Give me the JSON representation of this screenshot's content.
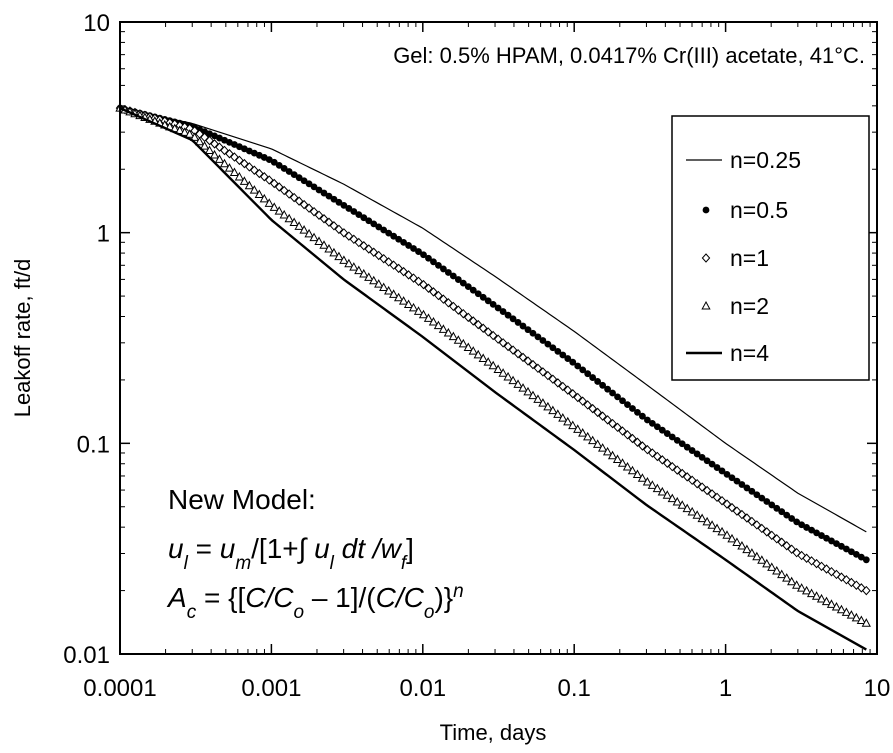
{
  "chart_data": {
    "type": "line",
    "title": "Gel: 0.5% HPAM, 0.0417% Cr(III) acetate, 41°C.",
    "xlabel": "Time, days",
    "ylabel": "Leakoff rate, ft/d",
    "x_scale": "log",
    "y_scale": "log",
    "xlim": [
      0.0001,
      10
    ],
    "ylim": [
      0.01,
      10
    ],
    "x_ticks": [
      "0.0001",
      "0.001",
      "0.01",
      "0.1",
      "1",
      "10"
    ],
    "y_ticks": [
      "0.01",
      "0.1",
      "1",
      "10"
    ],
    "grid": false,
    "legend_position": "right",
    "series": [
      {
        "name": "n=0.25",
        "style": "thin-line",
        "x": [
          0.0001,
          0.0003,
          0.001,
          0.003,
          0.01,
          0.03,
          0.1,
          0.3,
          1,
          3,
          8.5
        ],
        "y": [
          3.9,
          3.3,
          2.5,
          1.7,
          1.05,
          0.62,
          0.34,
          0.19,
          0.1,
          0.058,
          0.038
        ]
      },
      {
        "name": "n=0.5",
        "style": "filled-circles",
        "x": [
          0.0001,
          0.0003,
          0.001,
          0.003,
          0.01,
          0.03,
          0.1,
          0.3,
          1,
          3,
          8.5
        ],
        "y": [
          3.9,
          3.2,
          2.2,
          1.35,
          0.79,
          0.45,
          0.24,
          0.13,
          0.072,
          0.042,
          0.028
        ]
      },
      {
        "name": "n=1",
        "style": "open-diamonds",
        "x": [
          0.0001,
          0.0003,
          0.001,
          0.003,
          0.01,
          0.03,
          0.1,
          0.3,
          1,
          3,
          8.5
        ],
        "y": [
          3.9,
          3.1,
          1.75,
          1.0,
          0.57,
          0.32,
          0.17,
          0.094,
          0.052,
          0.03,
          0.02
        ]
      },
      {
        "name": "n=2",
        "style": "open-triangles",
        "x": [
          0.0001,
          0.0003,
          0.001,
          0.003,
          0.01,
          0.03,
          0.1,
          0.3,
          1,
          3,
          8.5
        ],
        "y": [
          3.9,
          2.9,
          1.35,
          0.74,
          0.41,
          0.23,
          0.12,
          0.066,
          0.037,
          0.021,
          0.014
        ]
      },
      {
        "name": "n=4",
        "style": "thick-line",
        "x": [
          0.0001,
          0.0003,
          0.001,
          0.003,
          0.01,
          0.03,
          0.1,
          0.3,
          1,
          3,
          8.5
        ],
        "y": [
          3.9,
          2.75,
          1.15,
          0.6,
          0.32,
          0.175,
          0.093,
          0.051,
          0.028,
          0.016,
          0.0105
        ]
      }
    ],
    "annotation": {
      "heading": "New Model:",
      "eq1": [
        {
          "t": "u",
          "style": "it"
        },
        {
          "t": "l",
          "style": "sub-it"
        },
        {
          "t": " = ",
          "style": ""
        },
        {
          "t": "u",
          "style": "it"
        },
        {
          "t": "m",
          "style": "sub-it"
        },
        {
          "t": "/[1+∫ ",
          "style": ""
        },
        {
          "t": "u",
          "style": "it"
        },
        {
          "t": "l",
          "style": "sub-it"
        },
        {
          "t": " dt /w",
          "style": "it"
        },
        {
          "t": "f",
          "style": "sub-it"
        },
        {
          "t": "]",
          "style": ""
        }
      ],
      "eq2": [
        {
          "t": "A",
          "style": "it"
        },
        {
          "t": "c",
          "style": "sub-it"
        },
        {
          "t": " = {[",
          "style": ""
        },
        {
          "t": "C/C",
          "style": "it"
        },
        {
          "t": "o",
          "style": "sub-it"
        },
        {
          "t": " – 1]/(",
          "style": ""
        },
        {
          "t": "C/C",
          "style": "it"
        },
        {
          "t": "o",
          "style": "sub-it"
        },
        {
          "t": ")}",
          "style": ""
        },
        {
          "t": "n",
          "style": "sup-it"
        }
      ]
    }
  }
}
